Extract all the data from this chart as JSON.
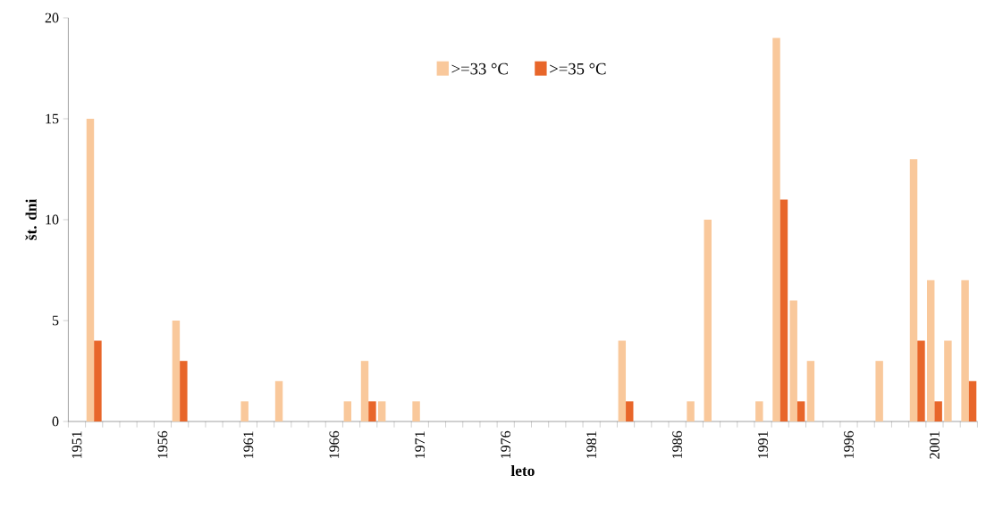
{
  "chart_data": {
    "type": "bar",
    "xlabel": "leto",
    "ylabel": "št. dni",
    "categories": [
      "1951",
      null,
      null,
      null,
      null,
      "1956",
      null,
      null,
      null,
      null,
      "1961",
      null,
      null,
      null,
      null,
      "1966",
      null,
      null,
      null,
      null,
      "1971",
      null,
      null,
      null,
      null,
      "1976",
      null,
      null,
      null,
      null,
      "1981",
      null,
      null,
      null,
      null,
      "1986",
      null,
      null,
      null,
      null,
      "1991",
      null,
      null,
      null,
      null,
      "1996",
      null,
      null,
      null,
      null,
      "2001",
      null,
      null
    ],
    "series": [
      {
        "name": ">=33 °C",
        "color": "#f9c89b",
        "values": [
          0,
          15,
          0,
          0,
          0,
          0,
          5,
          0,
          0,
          0,
          1,
          0,
          2,
          0,
          0,
          0,
          1,
          3,
          1,
          0,
          1,
          0,
          0,
          0,
          0,
          0,
          0,
          0,
          0,
          0,
          0,
          0,
          4,
          0,
          0,
          0,
          1,
          10,
          0,
          0,
          1,
          19,
          6,
          3,
          0,
          0,
          0,
          3,
          0,
          13,
          7,
          4,
          7
        ]
      },
      {
        "name": ">=35 °C",
        "color": "#e8662a",
        "values": [
          0,
          4,
          0,
          0,
          0,
          0,
          3,
          0,
          0,
          0,
          0,
          0,
          0,
          0,
          0,
          0,
          0,
          1,
          0,
          0,
          0,
          0,
          0,
          0,
          0,
          0,
          0,
          0,
          0,
          0,
          0,
          0,
          1,
          0,
          0,
          0,
          0,
          0,
          0,
          0,
          0,
          11,
          1,
          0,
          0,
          0,
          0,
          0,
          0,
          4,
          1,
          0,
          2
        ]
      }
    ],
    "ylim": [
      0,
      20
    ],
    "yticks": [
      0,
      5,
      10,
      15,
      20
    ],
    "legend": "top"
  }
}
